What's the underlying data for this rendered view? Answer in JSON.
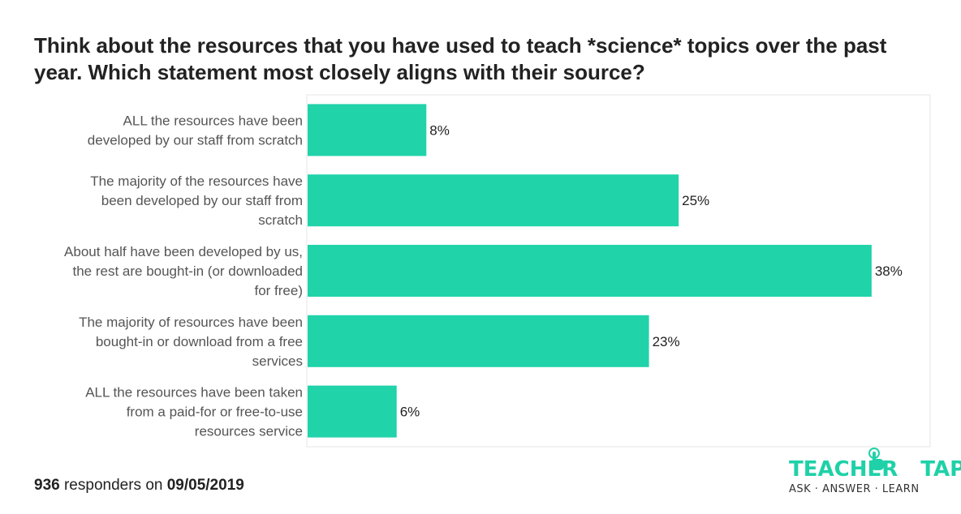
{
  "title": "Think about the resources that you have used to teach *science* topics over the past year. Which statement most closely aligns with their source?",
  "footer": {
    "count": "936",
    "middle": " responders on ",
    "date": "09/05/2019"
  },
  "logo": {
    "word1": "TEACHER",
    "word2": "TAPP",
    "tagline": "ASK · ANSWER · LEARN",
    "icon": "hand-pointer-icon"
  },
  "colors": {
    "bar": "#20d3a9",
    "grid": "#e6e6e6"
  },
  "chart_data": {
    "type": "bar",
    "orientation": "horizontal",
    "categories": [
      [
        "ALL the resources have been",
        "developed by our staff from scratch"
      ],
      [
        "The majority of the resources have",
        "been developed by our staff from",
        "scratch"
      ],
      [
        "About half have been developed by us,",
        "the rest are bought-in (or downloaded",
        "for free)"
      ],
      [
        "The majority of resources have been",
        "bought-in or download from a free",
        "services"
      ],
      [
        "ALL the resources have been taken",
        "from a paid-for or free-to-use",
        "resources service"
      ]
    ],
    "values": [
      8,
      25,
      38,
      23,
      6
    ],
    "value_labels": [
      "8%",
      "25%",
      "38%",
      "23%",
      "6%"
    ],
    "xlim": [
      0,
      42
    ]
  }
}
